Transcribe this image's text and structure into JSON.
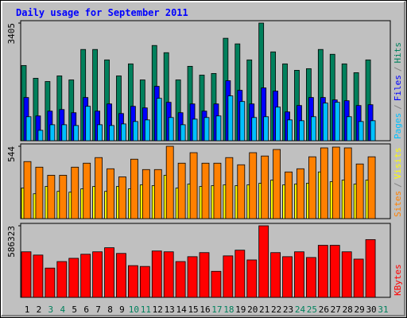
{
  "chart_data": {
    "type": "bar",
    "title": "Daily usage for September 2011",
    "title_color": "#0000ff",
    "categories": [
      "1",
      "2",
      "3",
      "4",
      "5",
      "6",
      "7",
      "8",
      "9",
      "10",
      "11",
      "12",
      "13",
      "14",
      "15",
      "16",
      "17",
      "18",
      "19",
      "20",
      "21",
      "22",
      "23",
      "24",
      "25",
      "26",
      "27",
      "28",
      "29",
      "30",
      "31"
    ],
    "category_colors": [
      "#000000",
      "#000000",
      "#00805c",
      "#00805c",
      "#000000",
      "#000000",
      "#000000",
      "#000000",
      "#000000",
      "#00805c",
      "#00805c",
      "#000000",
      "#000000",
      "#000000",
      "#000000",
      "#000000",
      "#00805c",
      "#00805c",
      "#000000",
      "#000000",
      "#000000",
      "#000000",
      "#000000",
      "#00805c",
      "#00805c",
      "#000000",
      "#000000",
      "#000000",
      "#000000",
      "#000000",
      "#00805c"
    ],
    "legend_separator": "/",
    "panels": [
      {
        "ylim": [
          0,
          3405
        ],
        "yticks": [
          3405
        ],
        "series": [
          {
            "name": "Hits",
            "color": "#00805c",
            "values": [
              2177,
              1807,
              1714,
              1876,
              1760,
              2641,
              2641,
              2339,
              1876,
              2224,
              1760,
              2756,
              2548,
              1760,
              2154,
              1899,
              1946,
              2965,
              2803,
              2339,
              3405,
              2571,
              2224,
              2038,
              2085,
              2641,
              2502,
              2224,
              1969,
              2339,
              null
            ]
          },
          {
            "name": "Files",
            "color": "#0000ff",
            "values": [
              1251,
              718,
              857,
              903,
              811,
              1251,
              857,
              1065,
              787,
              996,
              950,
              1575,
              1112,
              811,
              1065,
              857,
              1065,
              1737,
              1459,
              1065,
              1529,
              1436,
              834,
              1019,
              1251,
              1251,
              1181,
              1158,
              1019,
              1042,
              null
            ]
          },
          {
            "name": "Pages",
            "color": "#00c0ff",
            "values": [
              695,
              301,
              463,
              463,
              440,
              996,
              463,
              440,
              486,
              556,
              602,
              1227,
              672,
              463,
              625,
              672,
              718,
              1297,
              1135,
              672,
              695,
              973,
              602,
              579,
              695,
              1089,
              1112,
              695,
              556,
              579,
              null
            ]
          }
        ]
      },
      {
        "ylim": [
          0,
          544
        ],
        "yticks": [
          544
        ],
        "series": [
          {
            "name": "Visits",
            "color": "#ffff00",
            "values": [
              230,
              187,
              242,
              205,
              199,
              224,
              242,
              205,
              242,
              224,
              254,
              248,
              326,
              230,
              260,
              242,
              248,
              254,
              248,
              254,
              266,
              290,
              254,
              260,
              266,
              351,
              278,
              290,
              260,
              290,
              null
            ]
          },
          {
            "name": "Sites",
            "color": "#ff8000",
            "values": [
              429,
              387,
              326,
              326,
              387,
              417,
              459,
              375,
              314,
              447,
              369,
              369,
              544,
              417,
              496,
              417,
              417,
              459,
              405,
              496,
              471,
              520,
              351,
              375,
              465,
              532,
              538,
              532,
              411,
              465,
              null
            ]
          }
        ]
      },
      {
        "ylim": [
          0,
          586323
        ],
        "yticks": [
          586323
        ],
        "series": [
          {
            "name": "KBytes",
            "color": "#ff0000",
            "values": [
              373128,
              346476,
              239868,
              293172,
              319824,
              353139,
              373128,
              406443,
              359802,
              259857,
              253194,
              379791,
              373128,
              293172,
              333150,
              366465,
              213216,
              339813,
              386454,
              306498,
              586323,
              366465,
              333150,
              373128,
              326487,
              426432,
              426432,
              373128,
              313161,
              473073,
              null
            ]
          }
        ]
      }
    ]
  }
}
